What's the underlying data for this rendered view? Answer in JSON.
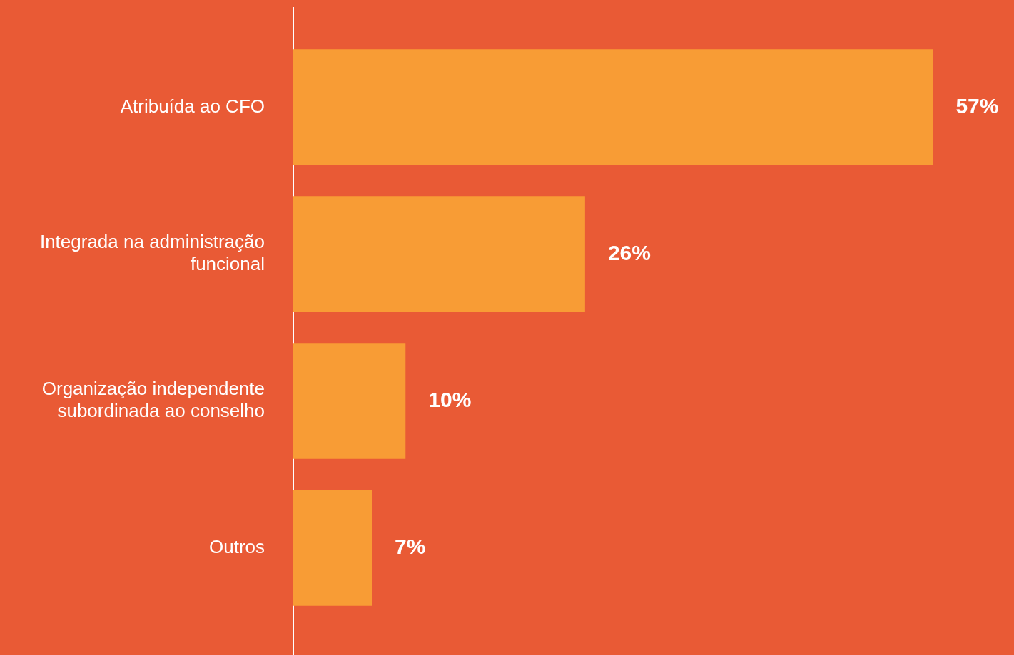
{
  "chart_data": {
    "type": "bar",
    "orientation": "horizontal",
    "categories": [
      "Atribuída ao CFO",
      "Integrada na administração funcional",
      "Organização independente subordinada ao conselho",
      "Outros"
    ],
    "values": [
      57,
      26,
      10,
      7
    ],
    "value_labels": [
      "57%",
      "26%",
      "10%",
      "7%"
    ],
    "color": "#f89c35",
    "grid": false
  }
}
